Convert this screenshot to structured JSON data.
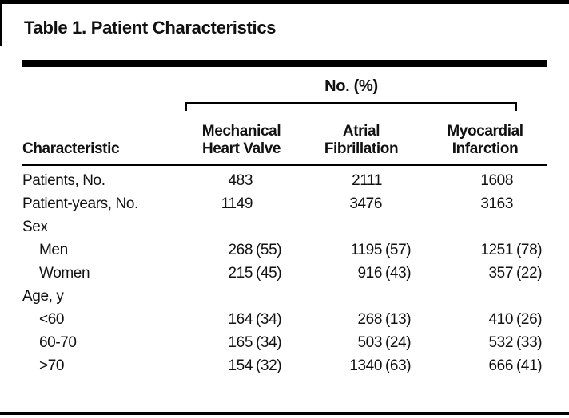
{
  "table": {
    "title": "Table 1. Patient Characteristics",
    "spanner_label": "No. (%)",
    "char_col_header": "Characteristic",
    "col_headers": [
      {
        "line1": "Mechanical",
        "line2": "Heart Valve"
      },
      {
        "line1": "Atrial",
        "line2": "Fibrillation"
      },
      {
        "line1": "Myocardial",
        "line2": "Infarction"
      }
    ],
    "rows": [
      {
        "label": "Patients, No.",
        "values": [
          {
            "num": "483",
            "pct": ""
          },
          {
            "num": "2111",
            "pct": ""
          },
          {
            "num": "1608",
            "pct": ""
          }
        ]
      },
      {
        "label": "Patient-years, No.",
        "values": [
          {
            "num": "1149",
            "pct": ""
          },
          {
            "num": "3476",
            "pct": ""
          },
          {
            "num": "3163",
            "pct": ""
          }
        ]
      },
      {
        "label": "Sex",
        "values": [
          {
            "num": "",
            "pct": ""
          },
          {
            "num": "",
            "pct": ""
          },
          {
            "num": "",
            "pct": ""
          }
        ]
      },
      {
        "label": "Men",
        "values": [
          {
            "num": "268",
            "pct": "(55)"
          },
          {
            "num": "1195",
            "pct": "(57)"
          },
          {
            "num": "1251",
            "pct": "(78)"
          }
        ]
      },
      {
        "label": "Women",
        "values": [
          {
            "num": "215",
            "pct": "(45)"
          },
          {
            "num": "916",
            "pct": "(43)"
          },
          {
            "num": "357",
            "pct": "(22)"
          }
        ]
      },
      {
        "label": "Age, y",
        "values": [
          {
            "num": "",
            "pct": ""
          },
          {
            "num": "",
            "pct": ""
          },
          {
            "num": "",
            "pct": ""
          }
        ]
      },
      {
        "label": "<60",
        "values": [
          {
            "num": "164",
            "pct": "(34)"
          },
          {
            "num": "268",
            "pct": "(13)"
          },
          {
            "num": "410",
            "pct": "(26)"
          }
        ]
      },
      {
        "label": "60-70",
        "values": [
          {
            "num": "165",
            "pct": "(34)"
          },
          {
            "num": "503",
            "pct": "(24)"
          },
          {
            "num": "532",
            "pct": "(33)"
          }
        ]
      },
      {
        "label": ">70",
        "values": [
          {
            "num": "154",
            "pct": "(32)"
          },
          {
            "num": "1340",
            "pct": "(63)"
          },
          {
            "num": "666",
            "pct": "(41)"
          }
        ]
      }
    ]
  }
}
